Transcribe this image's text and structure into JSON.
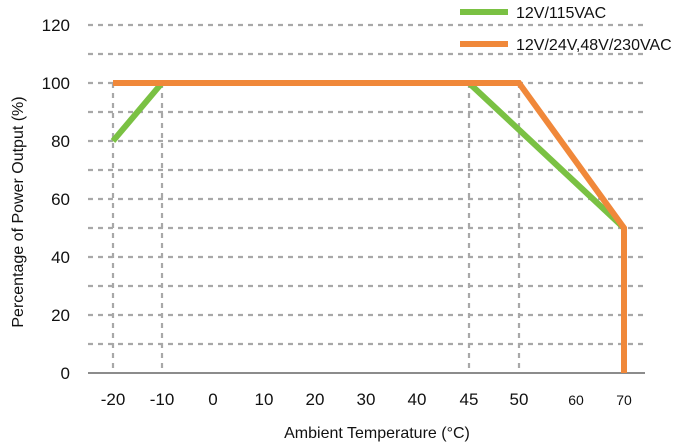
{
  "chart_data": {
    "type": "line",
    "title": "",
    "xlabel": "Ambient Temperature (°C)",
    "ylabel": "Percentage of Power Output (%)",
    "x_ticks": [
      "-20",
      "-10",
      "0",
      "10",
      "20",
      "30",
      "40",
      "45",
      "50",
      "60",
      "70"
    ],
    "y_ticks": [
      "0",
      "20",
      "40",
      "60",
      "80",
      "100",
      "120"
    ],
    "xlim": [
      -20,
      70
    ],
    "ylim": [
      0,
      120
    ],
    "grid": "dashed",
    "legend_position": "top-right",
    "series": [
      {
        "name": "12V/115VAC",
        "color": "#7AC143",
        "points": [
          [
            -20,
            80
          ],
          [
            -10,
            100
          ],
          [
            45,
            100
          ],
          [
            70,
            50
          ]
        ]
      },
      {
        "name": "12V/24V,48V/230VAC",
        "color": "#F0883A",
        "points": [
          [
            -20,
            100
          ],
          [
            50,
            100
          ],
          [
            70,
            50
          ],
          [
            70,
            0
          ]
        ]
      }
    ]
  }
}
